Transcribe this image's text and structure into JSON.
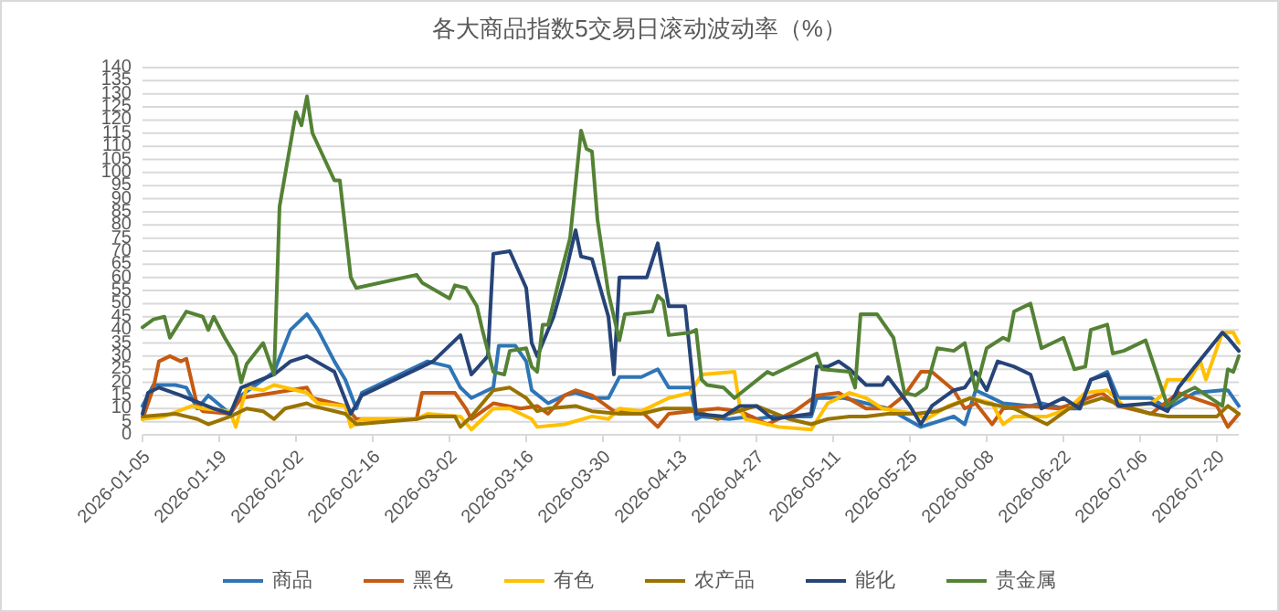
{
  "chart_data": {
    "type": "line",
    "title": "各大商品指数5交易日滚动波动率（%）",
    "ylim": [
      0,
      140
    ],
    "yticks": [
      0,
      5,
      10,
      15,
      20,
      25,
      30,
      35,
      40,
      45,
      50,
      55,
      60,
      65,
      70,
      75,
      80,
      85,
      90,
      95,
      100,
      105,
      110,
      115,
      120,
      125,
      130,
      135,
      140
    ],
    "xlim": [
      "2026-01-05",
      "2026-07-24"
    ],
    "xticks": [
      "2026-01-05",
      "2026-01-19",
      "2026-02-02",
      "2026-02-16",
      "2026-03-02",
      "2026-03-16",
      "2026-03-30",
      "2026-04-13",
      "2026-04-27",
      "2026-05-11",
      "2026-05-25",
      "2026-06-08",
      "2026-06-22",
      "2026-07-06",
      "2026-07-20"
    ],
    "grid": "y",
    "legend": "bottom",
    "marker": "none",
    "line_style": "solid",
    "series": [
      {
        "name": "商品",
        "color": "#2e75b6",
        "x": [
          "2026-01-05",
          "2026-01-07",
          "2026-01-11",
          "2026-01-13",
          "2026-01-15",
          "2026-01-17",
          "2026-01-21",
          "2026-01-23",
          "2026-01-29",
          "2026-02-01",
          "2026-02-04",
          "2026-02-06",
          "2026-02-09",
          "2026-02-11",
          "2026-02-13",
          "2026-02-14",
          "2026-02-26",
          "2026-03-02",
          "2026-03-04",
          "2026-03-06",
          "2026-03-10",
          "2026-03-11",
          "2026-03-14",
          "2026-03-16",
          "2026-03-17",
          "2026-03-20",
          "2026-03-23",
          "2026-03-25",
          "2026-03-28",
          "2026-03-31",
          "2026-04-02",
          "2026-04-06",
          "2026-04-09",
          "2026-04-11",
          "2026-04-15",
          "2026-04-16",
          "2026-04-17",
          "2026-04-22",
          "2026-04-26",
          "2026-04-27",
          "2026-04-30",
          "2026-05-07",
          "2026-05-08",
          "2026-05-13",
          "2026-05-17",
          "2026-05-21",
          "2026-05-27",
          "2026-06-02",
          "2026-06-04",
          "2026-06-06",
          "2026-06-08",
          "2026-06-11",
          "2026-06-16",
          "2026-06-18",
          "2026-06-22",
          "2026-06-25",
          "2026-06-27",
          "2026-06-30",
          "2026-07-02",
          "2026-07-08",
          "2026-07-11",
          "2026-07-16",
          "2026-07-21",
          "2026-07-22",
          "2026-07-24"
        ],
        "values": [
          11,
          19,
          19,
          18,
          10,
          15,
          8,
          15,
          24,
          40,
          46,
          40,
          28,
          21,
          10,
          16,
          28,
          26,
          18,
          14,
          18,
          34,
          34,
          28,
          17,
          12,
          15,
          16,
          14,
          14,
          22,
          22,
          25,
          18,
          18,
          6,
          7,
          6,
          7,
          6,
          7,
          7,
          14,
          14,
          12,
          10,
          3,
          7,
          4,
          17,
          15,
          12,
          11,
          12,
          10,
          10,
          21,
          24,
          14,
          14,
          10,
          16,
          17,
          17,
          11
        ]
      },
      {
        "name": "黑色",
        "color": "#c55a11",
        "x": [
          "2026-01-05",
          "2026-01-07",
          "2026-01-08",
          "2026-01-10",
          "2026-01-12",
          "2026-01-13",
          "2026-01-15",
          "2026-01-16",
          "2026-01-21",
          "2026-01-23",
          "2026-01-29",
          "2026-02-04",
          "2026-02-05",
          "2026-02-11",
          "2026-02-13",
          "2026-02-24",
          "2026-02-25",
          "2026-03-03",
          "2026-03-05",
          "2026-03-06",
          "2026-03-10",
          "2026-03-15",
          "2026-03-18",
          "2026-03-20",
          "2026-03-23",
          "2026-03-25",
          "2026-03-28",
          "2026-04-01",
          "2026-04-06",
          "2026-04-09",
          "2026-04-11",
          "2026-04-15",
          "2026-04-20",
          "2026-04-24",
          "2026-04-29",
          "2026-05-04",
          "2026-05-08",
          "2026-05-12",
          "2026-05-17",
          "2026-05-21",
          "2026-05-24",
          "2026-05-27",
          "2026-05-29",
          "2026-06-02",
          "2026-06-04",
          "2026-06-06",
          "2026-06-09",
          "2026-06-11",
          "2026-06-16",
          "2026-06-21",
          "2026-06-24",
          "2026-06-29",
          "2026-07-02",
          "2026-07-08",
          "2026-07-13",
          "2026-07-20",
          "2026-07-22",
          "2026-07-24"
        ],
        "values": [
          6,
          18,
          28,
          30,
          28,
          29,
          11,
          9,
          8,
          14,
          16,
          18,
          14,
          11,
          6,
          6,
          16,
          16,
          10,
          6,
          12,
          10,
          11,
          8,
          15,
          17,
          15,
          9,
          9,
          3,
          8,
          9,
          10,
          9,
          4,
          9,
          15,
          16,
          10,
          10,
          15,
          24,
          24,
          17,
          10,
          12,
          4,
          10,
          11,
          10,
          12,
          16,
          11,
          8,
          16,
          11,
          3,
          8
        ]
      },
      {
        "name": "有色",
        "color": "#ffc000",
        "x": [
          "2026-01-05",
          "2026-01-09",
          "2026-01-14",
          "2026-01-16",
          "2026-01-21",
          "2026-01-22",
          "2026-01-24",
          "2026-01-27",
          "2026-01-29",
          "2026-02-04",
          "2026-02-06",
          "2026-02-11",
          "2026-02-12",
          "2026-02-14",
          "2026-02-24",
          "2026-02-26",
          "2026-03-04",
          "2026-03-06",
          "2026-03-10",
          "2026-03-13",
          "2026-03-17",
          "2026-03-18",
          "2026-03-23",
          "2026-03-28",
          "2026-03-31",
          "2026-04-02",
          "2026-04-06",
          "2026-04-11",
          "2026-04-15",
          "2026-04-17",
          "2026-04-23",
          "2026-04-24",
          "2026-04-25",
          "2026-05-01",
          "2026-05-07",
          "2026-05-10",
          "2026-05-14",
          "2026-05-17",
          "2026-05-20",
          "2026-05-26",
          "2026-05-28",
          "2026-06-01",
          "2026-06-05",
          "2026-06-09",
          "2026-06-11",
          "2026-06-13",
          "2026-06-19",
          "2026-06-23",
          "2026-06-26",
          "2026-06-30",
          "2026-07-03",
          "2026-07-08",
          "2026-07-10",
          "2026-07-11",
          "2026-07-15",
          "2026-07-17",
          "2026-07-18",
          "2026-07-21",
          "2026-07-23",
          "2026-07-24"
        ],
        "values": [
          6,
          7,
          11,
          10,
          9,
          3,
          18,
          17,
          19,
          16,
          12,
          11,
          3,
          6,
          6,
          8,
          7,
          2,
          10,
          10,
          6,
          3,
          4,
          7,
          6,
          10,
          9,
          14,
          16,
          23,
          24,
          10,
          6,
          3,
          2,
          12,
          16,
          14,
          10,
          8,
          6,
          11,
          14,
          12,
          4,
          7,
          7,
          10,
          16,
          17,
          11,
          12,
          15,
          21,
          21,
          28,
          21,
          39,
          39,
          35
        ]
      },
      {
        "name": "农产品",
        "color": "#997300",
        "x": [
          "2026-01-05",
          "2026-01-11",
          "2026-01-13",
          "2026-01-15",
          "2026-01-17",
          "2026-01-21",
          "2026-01-24",
          "2026-01-27",
          "2026-01-29",
          "2026-01-31",
          "2026-02-04",
          "2026-02-05",
          "2026-02-11",
          "2026-02-13",
          "2026-02-24",
          "2026-02-26",
          "2026-03-03",
          "2026-03-04",
          "2026-03-06",
          "2026-03-10",
          "2026-03-13",
          "2026-03-16",
          "2026-03-18",
          "2026-03-20",
          "2026-03-25",
          "2026-03-28",
          "2026-04-02",
          "2026-04-06",
          "2026-04-10",
          "2026-04-15",
          "2026-04-20",
          "2026-04-22",
          "2026-04-27",
          "2026-05-03",
          "2026-05-07",
          "2026-05-10",
          "2026-05-14",
          "2026-05-17",
          "2026-05-21",
          "2026-05-26",
          "2026-05-30",
          "2026-06-05",
          "2026-06-08",
          "2026-06-13",
          "2026-06-19",
          "2026-06-23",
          "2026-06-29",
          "2026-07-03",
          "2026-07-08",
          "2026-07-11",
          "2026-07-20",
          "2026-07-22",
          "2026-07-24"
        ],
        "values": [
          7,
          8,
          7,
          6,
          4,
          7,
          10,
          9,
          6,
          10,
          12,
          11,
          8,
          4,
          6,
          7,
          7,
          3,
          7,
          17,
          18,
          14,
          9,
          10,
          11,
          9,
          8,
          8,
          10,
          10,
          6,
          8,
          11,
          6,
          4,
          6,
          7,
          7,
          8,
          8,
          9,
          14,
          12,
          10,
          4,
          10,
          14,
          11,
          8,
          7,
          7,
          11,
          8
        ]
      },
      {
        "name": "能化",
        "color": "#264478",
        "x": [
          "2026-01-05",
          "2026-01-06",
          "2026-01-08",
          "2026-01-12",
          "2026-01-18",
          "2026-01-21",
          "2026-01-23",
          "2026-01-29",
          "2026-02-01",
          "2026-02-04",
          "2026-02-09",
          "2026-02-12",
          "2026-02-14",
          "2026-02-27",
          "2026-03-04",
          "2026-03-06",
          "2026-03-09",
          "2026-03-10",
          "2026-03-13",
          "2026-03-16",
          "2026-03-17",
          "2026-03-18",
          "2026-03-21",
          "2026-03-23",
          "2026-03-25",
          "2026-03-26",
          "2026-03-28",
          "2026-03-31",
          "2026-04-01",
          "2026-04-02",
          "2026-04-07",
          "2026-04-09",
          "2026-04-11",
          "2026-04-14",
          "2026-04-16",
          "2026-04-21",
          "2026-04-24",
          "2026-04-27",
          "2026-04-30",
          "2026-05-07",
          "2026-05-08",
          "2026-05-10",
          "2026-05-12",
          "2026-05-14",
          "2026-05-17",
          "2026-05-20",
          "2026-05-21",
          "2026-05-25",
          "2026-05-27",
          "2026-05-29",
          "2026-06-02",
          "2026-06-04",
          "2026-06-06",
          "2026-06-08",
          "2026-06-10",
          "2026-06-13",
          "2026-06-16",
          "2026-06-18",
          "2026-06-22",
          "2026-06-25",
          "2026-06-27",
          "2026-06-30",
          "2026-07-02",
          "2026-07-08",
          "2026-07-11",
          "2026-07-13",
          "2026-07-16",
          "2026-07-21",
          "2026-07-22",
          "2026-07-24"
        ],
        "values": [
          8,
          16,
          18,
          15,
          10,
          8,
          18,
          23,
          28,
          30,
          24,
          8,
          15,
          28,
          38,
          23,
          30,
          69,
          70,
          56,
          35,
          30,
          45,
          60,
          78,
          68,
          67,
          45,
          23,
          60,
          60,
          73,
          49,
          49,
          8,
          7,
          11,
          11,
          6,
          8,
          26,
          26,
          28,
          25,
          19,
          19,
          22,
          11,
          4,
          11,
          17,
          18,
          24,
          17,
          28,
          26,
          23,
          10,
          14,
          10,
          21,
          23,
          11,
          12,
          9,
          18,
          26,
          39,
          37,
          32
        ]
      },
      {
        "name": "贵金属",
        "color": "#548235",
        "x": [
          "2026-01-05",
          "2026-01-07",
          "2026-01-09",
          "2026-01-10",
          "2026-01-13",
          "2026-01-16",
          "2026-01-17",
          "2026-01-18",
          "2026-01-20",
          "2026-01-22",
          "2026-01-23",
          "2026-01-24",
          "2026-01-27",
          "2026-01-29",
          "2026-01-30",
          "2026-02-02",
          "2026-02-03",
          "2026-02-04",
          "2026-02-05",
          "2026-02-09",
          "2026-02-10",
          "2026-02-12",
          "2026-02-13",
          "2026-02-24",
          "2026-02-25",
          "2026-03-02",
          "2026-03-03",
          "2026-03-05",
          "2026-03-07",
          "2026-03-08",
          "2026-03-10",
          "2026-03-12",
          "2026-03-13",
          "2026-03-16",
          "2026-03-17",
          "2026-03-18",
          "2026-03-19",
          "2026-03-20",
          "2026-03-22",
          "2026-03-24",
          "2026-03-26",
          "2026-03-27",
          "2026-03-28",
          "2026-03-29",
          "2026-03-31",
          "2026-04-02",
          "2026-04-03",
          "2026-04-08",
          "2026-04-09",
          "2026-04-10",
          "2026-04-11",
          "2026-04-15",
          "2026-04-16",
          "2026-04-17",
          "2026-04-18",
          "2026-04-21",
          "2026-04-23",
          "2026-04-29",
          "2026-04-30",
          "2026-05-08",
          "2026-05-09",
          "2026-05-14",
          "2026-05-15",
          "2026-05-16",
          "2026-05-19",
          "2026-05-22",
          "2026-05-24",
          "2026-05-26",
          "2026-05-28",
          "2026-05-30",
          "2026-06-02",
          "2026-06-04",
          "2026-06-06",
          "2026-06-08",
          "2026-06-11",
          "2026-06-12",
          "2026-06-13",
          "2026-06-16",
          "2026-06-18",
          "2026-06-22",
          "2026-06-24",
          "2026-06-26",
          "2026-06-27",
          "2026-06-30",
          "2026-07-01",
          "2026-07-03",
          "2026-07-07",
          "2026-07-11",
          "2026-07-14",
          "2026-07-16",
          "2026-07-21",
          "2026-07-22",
          "2026-07-23",
          "2026-07-24"
        ],
        "values": [
          41,
          44,
          45,
          37,
          47,
          45,
          40,
          45,
          37,
          30,
          20,
          27,
          35,
          23,
          87,
          123,
          118,
          129,
          115,
          97,
          97,
          60,
          56,
          61,
          58,
          52,
          57,
          56,
          49,
          40,
          24,
          23,
          32,
          33,
          26,
          24,
          42,
          42,
          59,
          75,
          116,
          109,
          108,
          82,
          54,
          36,
          46,
          47,
          53,
          51,
          38,
          39,
          40,
          21,
          19,
          18,
          14,
          24,
          23,
          31,
          25,
          24,
          18,
          46,
          46,
          37,
          16,
          15,
          18,
          33,
          32,
          35,
          17,
          33,
          37,
          36,
          47,
          50,
          33,
          37,
          25,
          26,
          40,
          42,
          31,
          32,
          36,
          11,
          16,
          18,
          11,
          25,
          24,
          30
        ]
      }
    ]
  }
}
